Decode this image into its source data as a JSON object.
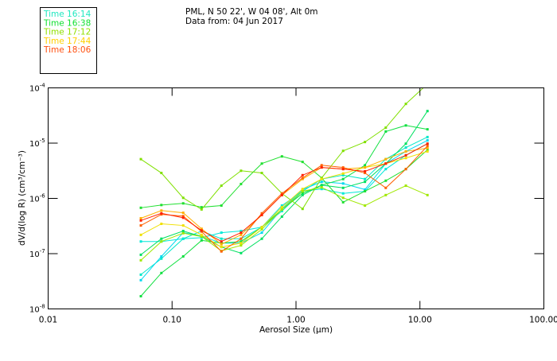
{
  "header": {
    "line1": "PML, N 50 22', W 04 08', Alt 0m",
    "line2": "Data from: 04 Jun 2017"
  },
  "legend": [
    {
      "label": "Time 16:14",
      "color": "#20e8c0"
    },
    {
      "label": "Time 16:38",
      "color": "#10e030"
    },
    {
      "label": "Time 17:12",
      "color": "#90e000"
    },
    {
      "label": "Time 17:44",
      "color": "#ffd000"
    },
    {
      "label": "Time 18:06",
      "color": "#ff5010"
    }
  ],
  "chart_data": {
    "type": "line",
    "xscale": "log",
    "yscale": "log",
    "xlabel": "Aerosol Size (μm)",
    "ylabel": "dV/d(log R) (cm³/cm⁻³)",
    "xlim": [
      0.01,
      100
    ],
    "ylim": [
      1e-08,
      0.0001
    ],
    "xticks": [
      "0.01",
      "0.10",
      "1.00",
      "10.00",
      "100.00"
    ],
    "xtick_values": [
      0.01,
      0.1,
      1,
      10,
      100
    ],
    "ytick_base": "10",
    "ytick_exponents": [
      "-4",
      "-5",
      "-6",
      "-7",
      "-8"
    ],
    "x": [
      0.056,
      0.082,
      0.123,
      0.173,
      0.25,
      0.36,
      0.53,
      0.77,
      1.13,
      1.61,
      2.4,
      3.6,
      5.3,
      7.7,
      11.5
    ],
    "y_note": "log10 of dV/d(log R)",
    "series": [
      {
        "name": "Time 16:14",
        "color": "#00e8c8",
        "log10_values": [
          -7.38,
          -7.09,
          -6.73,
          -6.59,
          -6.73,
          -6.73,
          -6.52,
          -6.23,
          -5.87,
          -5.65,
          -5.58,
          -5.65,
          -5.29,
          -5.08,
          -4.89
        ]
      },
      {
        "name": "Time 16:14",
        "color": "#00d8f0",
        "log10_values": [
          -7.48,
          -7.05,
          -6.62,
          -6.68,
          -6.81,
          -6.81,
          -6.62,
          -6.19,
          -5.84,
          -5.7,
          -5.73,
          -5.84,
          -5.37,
          -5.15,
          -4.95
        ]
      },
      {
        "name": "Time 16:14",
        "color": "#00e8d8",
        "log10_values": [
          -6.78,
          -6.78,
          -6.73,
          -6.71,
          -6.62,
          -6.59,
          -6.52,
          -6.13,
          -5.87,
          -5.83,
          -5.91,
          -5.87,
          -5.47,
          -5.22,
          -5.01
        ]
      },
      {
        "name": "Time 16:38",
        "color": "#10e040",
        "log10_values": [
          -7.77,
          -7.35,
          -7.05,
          -6.76,
          -6.81,
          -6.78,
          -6.52,
          -6.2,
          -5.91,
          -5.76,
          -5.65,
          -5.4,
          -4.79,
          -4.68,
          -4.75
        ]
      },
      {
        "name": "Time 16:38",
        "color": "#20e030",
        "log10_values": [
          -6.17,
          -6.12,
          -6.09,
          -6.16,
          -6.13,
          -5.74,
          -5.37,
          -5.24,
          -5.34,
          -5.63,
          -6.07,
          -5.87,
          -5.68,
          -5.47,
          -5.12
        ]
      },
      {
        "name": "Time 16:38",
        "color": "#00e060",
        "log10_values": [
          -7.02,
          -6.73,
          -6.59,
          -6.69,
          -6.88,
          -6.99,
          -6.73,
          -6.33,
          -5.94,
          -5.76,
          -5.81,
          -5.7,
          -5.37,
          -5.01,
          -4.42
        ]
      },
      {
        "name": "Time 17:12",
        "color": "#80e000",
        "log10_values": [
          -5.29,
          -5.54,
          -5.99,
          -6.2,
          -5.77,
          -5.5,
          -5.54,
          -5.91,
          -6.19,
          -5.63,
          -5.14,
          -4.98,
          -4.72,
          -4.29,
          -3.93
        ]
      },
      {
        "name": "Time 17:12",
        "color": "#a0e800",
        "log10_values": [
          -7.12,
          -6.78,
          -6.63,
          -6.69,
          -6.95,
          -6.85,
          -6.56,
          -6.2,
          -5.87,
          -5.8,
          -5.99,
          -6.13,
          -5.94,
          -5.77,
          -5.94
        ]
      },
      {
        "name": "Time 17:44",
        "color": "#f0e000",
        "log10_values": [
          -6.66,
          -6.46,
          -6.49,
          -6.66,
          -6.88,
          -6.81,
          -6.52,
          -6.16,
          -5.83,
          -5.65,
          -5.55,
          -5.44,
          -5.37,
          -5.27,
          -5.15
        ]
      },
      {
        "name": "Time 17:44",
        "color": "#ffb000",
        "log10_values": [
          -6.36,
          -6.22,
          -6.26,
          -6.55,
          -6.83,
          -6.66,
          -6.3,
          -5.94,
          -5.65,
          -5.44,
          -5.47,
          -5.44,
          -5.29,
          -5.15,
          -5.09
        ]
      },
      {
        "name": "Time 18:06",
        "color": "#ff6000",
        "log10_values": [
          -6.49,
          -6.29,
          -6.32,
          -6.6,
          -6.96,
          -6.73,
          -6.27,
          -5.91,
          -5.63,
          -5.4,
          -5.44,
          -5.54,
          -5.81,
          -5.47,
          -5.05
        ]
      },
      {
        "name": "Time 18:06",
        "color": "#ff2000",
        "log10_values": [
          -6.4,
          -6.27,
          -6.35,
          -6.58,
          -6.78,
          -6.62,
          -6.3,
          -5.94,
          -5.58,
          -5.44,
          -5.47,
          -5.51,
          -5.37,
          -5.22,
          -5.01
        ]
      }
    ]
  }
}
